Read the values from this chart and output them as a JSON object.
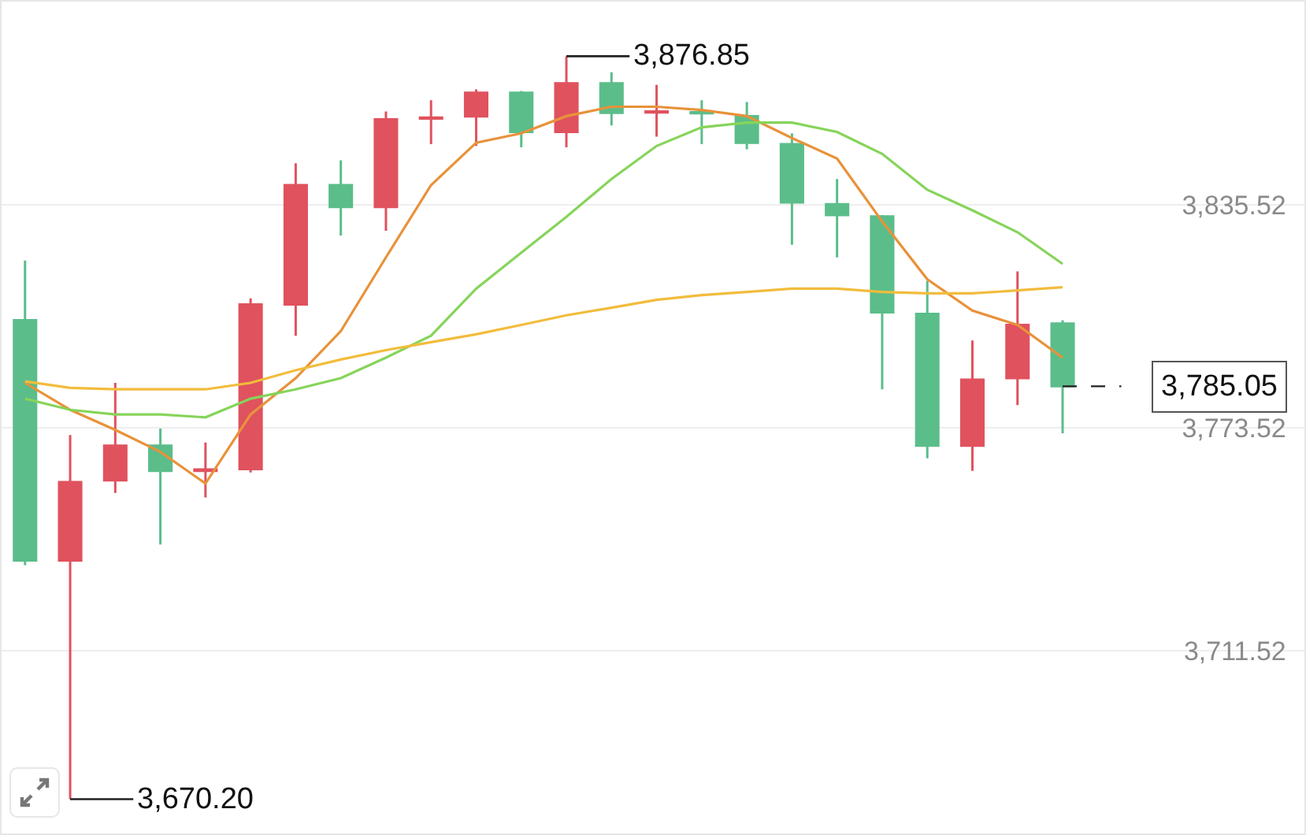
{
  "chart_data": {
    "type": "candlestick",
    "categories": [
      null,
      null,
      null,
      null,
      null,
      null,
      null,
      null,
      null,
      null,
      null,
      null,
      null,
      null,
      null,
      null,
      null,
      null,
      null,
      null,
      null,
      null,
      null,
      null
    ],
    "ohlc": [
      [
        3803.4,
        3820.0,
        3735.3,
        3736.6
      ],
      [
        3736.6,
        3771.5,
        3670.2,
        3758.4
      ],
      [
        3758.9,
        3786.0,
        3755.4,
        3768.5
      ],
      [
        3768.5,
        3773.3,
        3741.0,
        3761.5
      ],
      [
        3761.5,
        3769.4,
        3754.1,
        3761.9
      ],
      [
        3762.0,
        3809.5,
        3761.1,
        3807.8
      ],
      [
        3807.8,
        3847.1,
        3799.1,
        3841.0
      ],
      [
        3841.0,
        3847.9,
        3827.0,
        3834.9
      ],
      [
        3834.9,
        3861.5,
        3828.3,
        3859.3
      ],
      [
        3859.5,
        3864.6,
        3852.4,
        3859.8
      ],
      [
        3860.1,
        3867.6,
        3851.9,
        3866.7
      ],
      [
        3866.7,
        3867.2,
        3851.5,
        3855.8
      ],
      [
        3855.8,
        3876.85,
        3851.5,
        3869.3
      ],
      [
        3869.3,
        3872.4,
        3857.6,
        3861.1
      ],
      [
        3861.2,
        3868.9,
        3854.5,
        3861.5
      ],
      [
        3861.3,
        3864.6,
        3852.4,
        3861.0
      ],
      [
        3860.2,
        3864.1,
        3851.0,
        3852.8
      ],
      [
        3852.4,
        3855.4,
        3824.4,
        3836.2
      ],
      [
        3835.7,
        3842.7,
        3820.9,
        3832.7
      ],
      [
        3832.3,
        3832.7,
        3784.2,
        3805.6
      ],
      [
        3805.2,
        3814.4,
        3765.0,
        3768.5
      ],
      [
        3768.5,
        3797.8,
        3761.5,
        3786.9
      ],
      [
        3787.3,
        3817.0,
        3779.8,
        3802.1
      ],
      [
        3802.5,
        3803.4,
        3772.0,
        3785.05
      ]
    ],
    "colors": [
      "#5bbd8a",
      "#e0525e",
      "#e0525e",
      "#5bbd8a",
      "#e0525e",
      "#e0525e",
      "#e0525e",
      "#5bbd8a",
      "#e0525e",
      "#e0525e",
      "#e0525e",
      "#5bbd8a",
      "#e0525e",
      "#5bbd8a",
      "#e0525e",
      "#5bbd8a",
      "#5bbd8a",
      "#5bbd8a",
      "#5bbd8a",
      "#5bbd8a",
      "#5bbd8a",
      "#e0525e",
      "#e0525e",
      "#5bbd8a"
    ],
    "series": [
      {
        "type": "line",
        "color": "#e8923a",
        "values": [
          3786.0,
          3778.5,
          3772.9,
          3766.8,
          3758.0,
          3777.2,
          3787.3,
          3800.4,
          3820.9,
          3841.0,
          3852.8,
          3855.4,
          3860.2,
          3862.8,
          3862.8,
          3861.9,
          3860.2,
          3854.1,
          3848.4,
          3830.9,
          3814.8,
          3806.1,
          3802.1,
          3793.0
        ]
      },
      {
        "type": "line",
        "color": "#86d45a",
        "values": [
          3781.6,
          3778.5,
          3777.2,
          3777.2,
          3776.4,
          3781.6,
          3784.2,
          3787.3,
          3793.0,
          3799.1,
          3812.2,
          3822.2,
          3832.2,
          3842.7,
          3851.9,
          3857.1,
          3858.4,
          3858.4,
          3855.8,
          3849.7,
          3839.7,
          3834.0,
          3827.9,
          3819.1
        ]
      },
      {
        "type": "line",
        "color": "#f2bc3c",
        "values": [
          3786.4,
          3784.6,
          3784.2,
          3784.2,
          3784.2,
          3786.0,
          3789.5,
          3792.5,
          3795.1,
          3797.3,
          3799.5,
          3802.1,
          3804.8,
          3806.9,
          3809.1,
          3810.4,
          3811.3,
          3812.2,
          3812.2,
          3811.3,
          3810.9,
          3810.9,
          3811.7,
          3812.6
        ]
      }
    ],
    "ylim": [
      3660.66,
      3892.06
    ],
    "yticks": [
      {
        "value": 3711.52,
        "label": "3,711.52"
      },
      {
        "value": 3773.52,
        "label": "3,773.52"
      },
      {
        "value": 3835.52,
        "label": "3,835.52"
      }
    ],
    "grid": "y",
    "annotations": [
      "3,876.85",
      "3,670.20"
    ],
    "ref_lines": [
      {
        "axis": "y",
        "value": 3785.05,
        "label": "3,785.05",
        "line_style": "dashed",
        "color": "#222222"
      }
    ]
  }
}
